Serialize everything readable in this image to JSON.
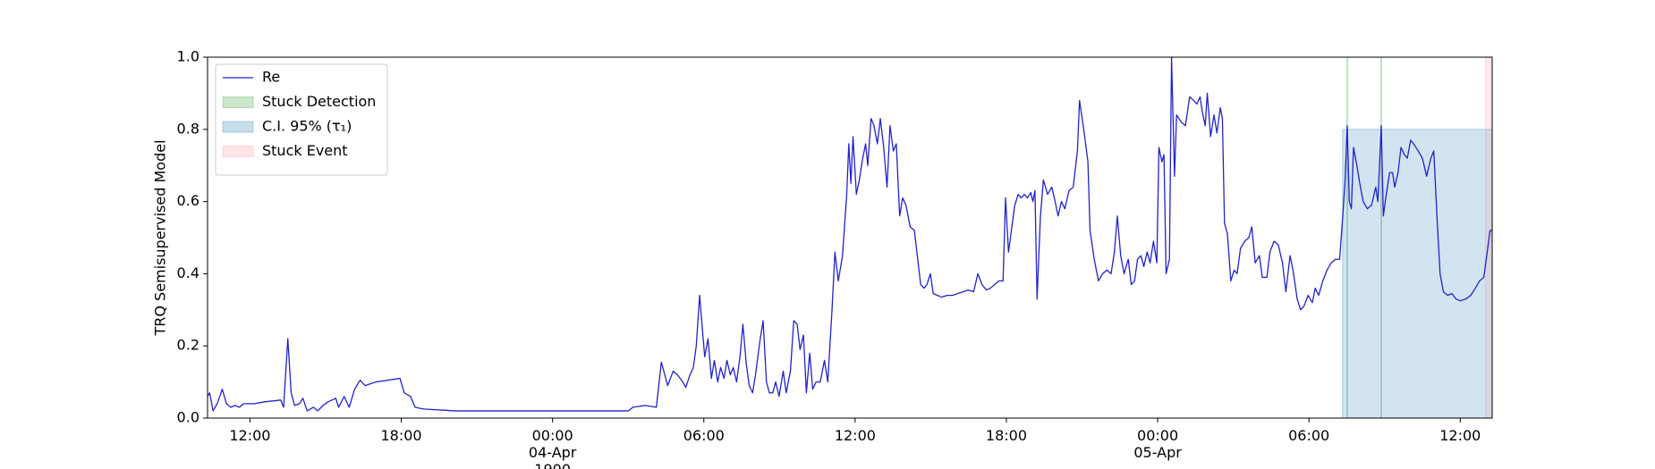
{
  "chart_data": {
    "type": "line",
    "ylabel": "TRQ Semisupervised Model",
    "xlim": [
      "1900-04-03 10:19",
      "1900-04-05 13:16"
    ],
    "ylim": [
      0,
      1
    ],
    "yticks": [
      {
        "value": 0,
        "label": "0.0"
      },
      {
        "value": 0.2,
        "label": "0.2"
      },
      {
        "value": 0.4,
        "label": "0.4"
      },
      {
        "value": 0.6,
        "label": "0.6"
      },
      {
        "value": 0.8,
        "label": "0.8"
      },
      {
        "value": 1,
        "label": "1.0"
      }
    ],
    "xticks": [
      {
        "value": "1900-04-03 12:00",
        "label": "12:00"
      },
      {
        "value": "1900-04-03 18:00",
        "label": "18:00"
      },
      {
        "value": "1900-04-04 00:00",
        "label": "00:00\n04-Apr\n1900"
      },
      {
        "value": "1900-04-04 06:00",
        "label": "06:00"
      },
      {
        "value": "1900-04-04 12:00",
        "label": "12:00"
      },
      {
        "value": "1900-04-04 18:00",
        "label": "18:00"
      },
      {
        "value": "1900-04-05 00:00",
        "label": "00:00\n05-Apr"
      },
      {
        "value": "1900-04-05 06:00",
        "label": "06:00"
      },
      {
        "value": "1900-04-05 12:00",
        "label": "12:00"
      }
    ],
    "legend": "upper left",
    "x": [
      "1900-04-03 10:19",
      "1900-04-03 10:24",
      "1900-04-03 10:32",
      "1900-04-03 10:42",
      "1900-04-03 10:54",
      "1900-04-03 11:04",
      "1900-04-03 11:14",
      "1900-04-03 11:24",
      "1900-04-03 11:35",
      "1900-04-03 11:45",
      "1900-04-03 12:10",
      "1900-04-03 12:35",
      "1900-04-03 13:13",
      "1900-04-03 13:20",
      "1900-04-03 13:30",
      "1900-04-03 13:38",
      "1900-04-03 13:46",
      "1900-04-03 13:58",
      "1900-04-03 14:06",
      "1900-04-03 14:16",
      "1900-04-03 14:31",
      "1900-04-03 14:41",
      "1900-04-03 14:54",
      "1900-04-03 15:06",
      "1900-04-03 15:24",
      "1900-04-03 15:31",
      "1900-04-03 15:44",
      "1900-04-03 15:56",
      "1900-04-03 16:09",
      "1900-04-03 16:22",
      "1900-04-03 16:34",
      "1900-04-03 16:59",
      "1900-04-03 17:57",
      "1900-04-03 18:07",
      "1900-04-03 18:22",
      "1900-04-03 18:33",
      "1900-04-03 18:53",
      "1900-04-03 20:08",
      "1900-04-03 23:04",
      "1900-04-04 03:01",
      "1900-04-04 03:11",
      "1900-04-04 03:41",
      "1900-04-04 04:07",
      "1900-04-04 04:19",
      "1900-04-04 04:27",
      "1900-04-04 04:34",
      "1900-04-04 04:47",
      "1900-04-04 04:57",
      "1900-04-04 05:10",
      "1900-04-04 05:17",
      "1900-04-04 05:27",
      "1900-04-04 05:35",
      "1900-04-04 05:42",
      "1900-04-04 05:50",
      "1900-04-04 05:57",
      "1900-04-04 06:02",
      "1900-04-04 06:10",
      "1900-04-04 06:18",
      "1900-04-04 06:25",
      "1900-04-04 06:33",
      "1900-04-04 06:40",
      "1900-04-04 06:48",
      "1900-04-04 06:55",
      "1900-04-04 07:03",
      "1900-04-04 07:10",
      "1900-04-04 07:18",
      "1900-04-04 07:26",
      "1900-04-04 07:33",
      "1900-04-04 07:41",
      "1900-04-04 07:48",
      "1900-04-04 07:56",
      "1900-04-04 08:03",
      "1900-04-04 08:13",
      "1900-04-04 08:21",
      "1900-04-04 08:29",
      "1900-04-04 08:36",
      "1900-04-04 08:44",
      "1900-04-04 08:51",
      "1900-04-04 08:59",
      "1900-04-04 09:09",
      "1900-04-04 09:16",
      "1900-04-04 09:26",
      "1900-04-04 09:34",
      "1900-04-04 09:42",
      "1900-04-04 09:49",
      "1900-04-04 09:57",
      "1900-04-04 10:04",
      "1900-04-04 10:12",
      "1900-04-04 10:19",
      "1900-04-04 10:27",
      "1900-04-04 10:37",
      "1900-04-04 10:47",
      "1900-04-04 10:55",
      "1900-04-04 11:05",
      "1900-04-04 11:12",
      "1900-04-04 11:20",
      "1900-04-04 11:30",
      "1900-04-04 11:40",
      "1900-04-04 11:45",
      "1900-04-04 11:50",
      "1900-04-04 11:55",
      "1900-04-04 12:03",
      "1900-04-04 12:10",
      "1900-04-04 12:18",
      "1900-04-04 12:25",
      "1900-04-04 12:30",
      "1900-04-04 12:38",
      "1900-04-04 12:45",
      "1900-04-04 12:53",
      "1900-04-04 13:00",
      "1900-04-04 13:08",
      "1900-04-04 13:16",
      "1900-04-04 13:23",
      "1900-04-04 13:31",
      "1900-04-04 13:38",
      "1900-04-04 13:46",
      "1900-04-04 13:53",
      "1900-04-04 14:01",
      "1900-04-04 14:11",
      "1900-04-04 14:21",
      "1900-04-04 14:29",
      "1900-04-04 14:36",
      "1900-04-04 14:44",
      "1900-04-04 14:51",
      "1900-04-04 14:59",
      "1900-04-04 15:06",
      "1900-04-04 15:16",
      "1900-04-04 15:26",
      "1900-04-04 15:39",
      "1900-04-04 15:52",
      "1900-04-04 16:04",
      "1900-04-04 16:17",
      "1900-04-04 16:29",
      "1900-04-04 16:42",
      "1900-04-04 16:52",
      "1900-04-04 17:02",
      "1900-04-04 17:12",
      "1900-04-04 17:22",
      "1900-04-04 17:32",
      "1900-04-04 17:42",
      "1900-04-04 17:52",
      "1900-04-04 17:58",
      "1900-04-04 18:05",
      "1900-04-04 18:13",
      "1900-04-04 18:20",
      "1900-04-04 18:28",
      "1900-04-04 18:35",
      "1900-04-04 18:43",
      "1900-04-04 18:50",
      "1900-04-04 18:58",
      "1900-04-04 19:03",
      "1900-04-04 19:08",
      "1900-04-04 19:13",
      "1900-04-04 19:21",
      "1900-04-04 19:28",
      "1900-04-04 19:38",
      "1900-04-04 19:48",
      "1900-04-04 19:56",
      "1900-04-04 20:03",
      "1900-04-04 20:11",
      "1900-04-04 20:19",
      "1900-04-04 20:29",
      "1900-04-04 20:39",
      "1900-04-04 20:49",
      "1900-04-04 20:54",
      "1900-04-04 21:04",
      "1900-04-04 21:14",
      "1900-04-04 21:19",
      "1900-04-04 21:29",
      "1900-04-04 21:39",
      "1900-04-04 21:49",
      "1900-04-04 21:59",
      "1900-04-04 22:09",
      "1900-04-04 22:17",
      "1900-04-04 22:24",
      "1900-04-04 22:32",
      "1900-04-04 22:40",
      "1900-04-04 22:50",
      "1900-04-04 22:57",
      "1900-04-04 23:05",
      "1900-04-04 23:12",
      "1900-04-04 23:20",
      "1900-04-04 23:27",
      "1900-04-04 23:35",
      "1900-04-04 23:42",
      "1900-04-04 23:50",
      "1900-04-04 23:58",
      "1900-04-05 00:03",
      "1900-04-05 00:10",
      "1900-04-05 00:15",
      "1900-04-05 00:20",
      "1900-04-05 00:28",
      "1900-04-05 00:33",
      "1900-04-05 00:40",
      "1900-04-05 00:45",
      "1900-04-05 00:56",
      "1900-04-05 01:06",
      "1900-04-05 01:16",
      "1900-04-05 01:26",
      "1900-04-05 01:33",
      "1900-04-05 01:41",
      "1900-04-05 01:46",
      "1900-04-05 01:53",
      "1900-04-05 01:58",
      "1900-04-05 02:06",
      "1900-04-05 02:14",
      "1900-04-05 02:21",
      "1900-04-05 02:29",
      "1900-04-05 02:34",
      "1900-04-05 02:39",
      "1900-04-05 02:46",
      "1900-04-05 02:54",
      "1900-04-05 03:02",
      "1900-04-05 03:09",
      "1900-04-05 03:17",
      "1900-04-05 03:27",
      "1900-04-05 03:37",
      "1900-04-05 03:44",
      "1900-04-05 03:52",
      "1900-04-05 04:02",
      "1900-04-05 04:09",
      "1900-04-05 04:20",
      "1900-04-05 04:27",
      "1900-04-05 04:37",
      "1900-04-05 04:47",
      "1900-04-05 04:57",
      "1900-04-05 05:05",
      "1900-04-05 05:15",
      "1900-04-05 05:22",
      "1900-04-05 05:32",
      "1900-04-05 05:40",
      "1900-04-05 05:48",
      "1900-04-05 05:58",
      "1900-04-05 06:08",
      "1900-04-05 06:15",
      "1900-04-05 06:23",
      "1900-04-05 06:33",
      "1900-04-05 06:43",
      "1900-04-05 06:53",
      "1900-04-05 07:03",
      "1900-04-05 07:13",
      "1900-04-05 07:21",
      "1900-04-05 07:26",
      "1900-04-05 07:31",
      "1900-04-05 07:36",
      "1900-04-05 07:41",
      "1900-04-05 07:46",
      "1900-04-05 07:54",
      "1900-04-05 08:01",
      "1900-04-05 08:09",
      "1900-04-05 08:19",
      "1900-04-05 08:29",
      "1900-04-05 08:39",
      "1900-04-05 08:44",
      "1900-04-05 08:52",
      "1900-04-05 08:57",
      "1900-04-05 09:04",
      "1900-04-05 09:12",
      "1900-04-05 09:19",
      "1900-04-05 09:24",
      "1900-04-05 09:32",
      "1900-04-05 09:39",
      "1900-04-05 09:47",
      "1900-04-05 09:54",
      "1900-04-05 10:02",
      "1900-04-05 10:09",
      "1900-04-05 10:20",
      "1900-04-05 10:30",
      "1900-04-05 10:40",
      "1900-04-05 10:50",
      "1900-04-05 10:57",
      "1900-04-05 11:05",
      "1900-04-05 11:12",
      "1900-04-05 11:20",
      "1900-04-05 11:30",
      "1900-04-05 11:40",
      "1900-04-05 11:50",
      "1900-04-05 12:00",
      "1900-04-05 12:13",
      "1900-04-05 12:25",
      "1900-04-05 12:36",
      "1900-04-05 12:46",
      "1900-04-05 12:56",
      "1900-04-05 13:03",
      "1900-04-05 13:11",
      "1900-04-05 13:16"
    ],
    "series": [
      {
        "name": "Re",
        "color": "#2222cc",
        "values": [
          0.06,
          0.07,
          0.02,
          0.04,
          0.08,
          0.04,
          0.03,
          0.035,
          0.03,
          0.04,
          0.04,
          0.045,
          0.05,
          0.03,
          0.22,
          0.07,
          0.035,
          0.04,
          0.055,
          0.02,
          0.03,
          0.02,
          0.035,
          0.045,
          0.055,
          0.03,
          0.06,
          0.03,
          0.08,
          0.105,
          0.09,
          0.1,
          0.11,
          0.07,
          0.06,
          0.03,
          0.025,
          0.02,
          0.02,
          0.02,
          0.03,
          0.035,
          0.03,
          0.155,
          0.12,
          0.09,
          0.13,
          0.12,
          0.1,
          0.085,
          0.12,
          0.14,
          0.2,
          0.34,
          0.24,
          0.17,
          0.22,
          0.11,
          0.16,
          0.1,
          0.14,
          0.11,
          0.16,
          0.12,
          0.14,
          0.1,
          0.17,
          0.26,
          0.15,
          0.09,
          0.07,
          0.12,
          0.21,
          0.27,
          0.1,
          0.07,
          0.07,
          0.1,
          0.06,
          0.13,
          0.07,
          0.13,
          0.27,
          0.26,
          0.19,
          0.23,
          0.07,
          0.18,
          0.08,
          0.1,
          0.1,
          0.16,
          0.1,
          0.3,
          0.46,
          0.38,
          0.45,
          0.62,
          0.76,
          0.65,
          0.78,
          0.62,
          0.66,
          0.72,
          0.76,
          0.7,
          0.83,
          0.81,
          0.76,
          0.83,
          0.75,
          0.64,
          0.81,
          0.74,
          0.76,
          0.56,
          0.61,
          0.59,
          0.53,
          0.52,
          0.44,
          0.37,
          0.36,
          0.37,
          0.4,
          0.345,
          0.34,
          0.335,
          0.34,
          0.34,
          0.345,
          0.35,
          0.355,
          0.35,
          0.4,
          0.37,
          0.355,
          0.36,
          0.37,
          0.38,
          0.38,
          0.61,
          0.46,
          0.53,
          0.59,
          0.62,
          0.61,
          0.62,
          0.61,
          0.625,
          0.6,
          0.63,
          0.33,
          0.56,
          0.66,
          0.62,
          0.64,
          0.6,
          0.56,
          0.6,
          0.58,
          0.63,
          0.64,
          0.74,
          0.88,
          0.8,
          0.71,
          0.52,
          0.44,
          0.38,
          0.4,
          0.41,
          0.4,
          0.46,
          0.56,
          0.45,
          0.4,
          0.44,
          0.37,
          0.38,
          0.44,
          0.45,
          0.42,
          0.46,
          0.43,
          0.49,
          0.43,
          0.75,
          0.71,
          0.73,
          0.4,
          0.44,
          1.0,
          0.67,
          0.84,
          0.82,
          0.81,
          0.89,
          0.88,
          0.87,
          0.89,
          0.85,
          0.81,
          0.9,
          0.78,
          0.84,
          0.79,
          0.86,
          0.83,
          0.54,
          0.51,
          0.38,
          0.41,
          0.4,
          0.47,
          0.49,
          0.5,
          0.53,
          0.43,
          0.45,
          0.39,
          0.39,
          0.46,
          0.49,
          0.48,
          0.43,
          0.35,
          0.45,
          0.41,
          0.33,
          0.3,
          0.31,
          0.34,
          0.32,
          0.36,
          0.34,
          0.38,
          0.41,
          0.43,
          0.44,
          0.44,
          0.57,
          0.66,
          0.81,
          0.6,
          0.58,
          0.75,
          0.7,
          0.65,
          0.6,
          0.58,
          0.59,
          0.64,
          0.6,
          0.81,
          0.56,
          0.62,
          0.68,
          0.68,
          0.64,
          0.68,
          0.75,
          0.73,
          0.72,
          0.77,
          0.76,
          0.74,
          0.72,
          0.67,
          0.72,
          0.74,
          0.55,
          0.4,
          0.35,
          0.34,
          0.345,
          0.33,
          0.325,
          0.33,
          0.34,
          0.36,
          0.38,
          0.39,
          0.45,
          0.52,
          0.52
        ]
      }
    ],
    "regions": [
      {
        "name": "Stuck Detection",
        "color": "#2ca02c",
        "kind": "vlines",
        "x": [
          "1900-04-05 07:31",
          "1900-04-05 08:52"
        ]
      },
      {
        "name": "C.I. 95% (τ₁)",
        "color": "#1f77b4",
        "kind": "span",
        "x": [
          "1900-04-05 07:20",
          "1900-04-05 13:16"
        ],
        "y": [
          0,
          0.8
        ]
      },
      {
        "name": "Stuck Event",
        "color": "#ff9896",
        "kind": "span",
        "x": [
          "1900-04-05 13:00",
          "1900-04-05 13:16"
        ]
      }
    ]
  }
}
